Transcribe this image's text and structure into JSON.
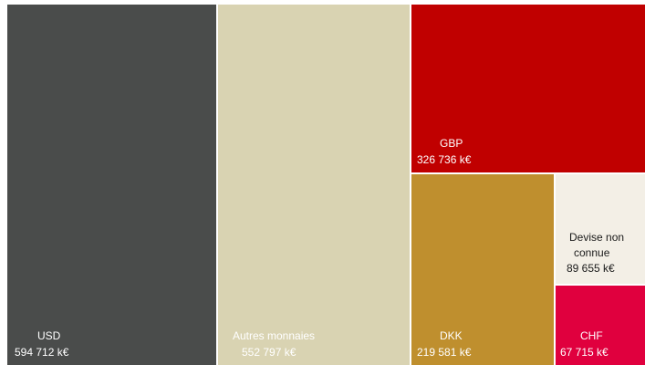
{
  "chart_data": {
    "type": "treemap",
    "unit": "k€",
    "items": [
      {
        "name": "USD",
        "value": 594712,
        "value_label": "594 712  k€",
        "color": "#4a4c4b",
        "text_color": "#ffffff"
      },
      {
        "name": "Autres monnaies",
        "value": 552797,
        "value_label": "552 797  k€",
        "color": "#d9d3b2",
        "text_color": "#ffffff"
      },
      {
        "name": "GBP",
        "value": 326736,
        "value_label": "326 736  k€",
        "color": "#c00000",
        "text_color": "#ffffff"
      },
      {
        "name": "DKK",
        "value": 219581,
        "value_label": "219 581  k€",
        "color": "#bf8f2e",
        "text_color": "#ffffff"
      },
      {
        "name": "Devise non connue",
        "value": 89655,
        "value_label": "89 655  k€",
        "color": "#f3efe6",
        "text_color": "#1a1a1a"
      },
      {
        "name": "CHF",
        "value": 67715,
        "value_label": "67 715  k€",
        "color": "#e0003e",
        "text_color": "#ffffff"
      }
    ]
  }
}
